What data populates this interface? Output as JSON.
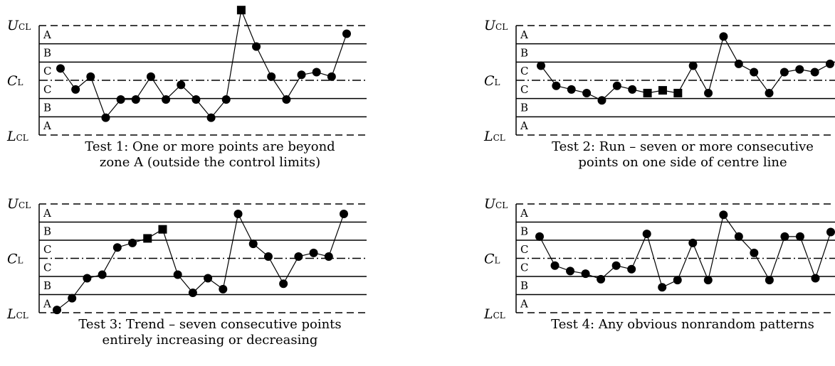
{
  "labels": {
    "ucl_main": "U",
    "ucl_sub": "CL",
    "cl_main": "C",
    "cl_sub": "L",
    "lcl_main": "L",
    "lcl_sub": "CL"
  },
  "zone_labels": [
    "A",
    "B",
    "C",
    "C",
    "B",
    "A"
  ],
  "colors": {
    "ink": "#000000"
  },
  "chart_data": [
    {
      "type": "line",
      "caption": [
        "Test 1: One or more points are beyond",
        "zone A (outside the control limits)"
      ],
      "y_scale": "zone units from centre line (3 = UCL, -3 = LCL)",
      "values": [
        0.65,
        -0.5,
        0.2,
        -2.05,
        -1.05,
        -1.05,
        0.2,
        -1.05,
        -0.25,
        -1.05,
        -2.05,
        -1.05,
        3.85,
        1.85,
        0.2,
        -1.05,
        0.3,
        0.45,
        0.2,
        2.55
      ],
      "highlighted": [
        12
      ]
    },
    {
      "type": "line",
      "caption": [
        "Test 2: Run – seven or more consecutive",
        "points on one side of centre line"
      ],
      "y_scale": "zone units from centre line (3 = UCL, -3 = LCL)",
      "values": [
        0.8,
        -0.3,
        -0.5,
        -0.7,
        -1.1,
        -0.3,
        -0.5,
        -0.7,
        -0.55,
        -0.7,
        0.8,
        -0.7,
        2.4,
        0.9,
        0.45,
        -0.7,
        0.45,
        0.6,
        0.45,
        0.9
      ],
      "highlighted": [
        7,
        8,
        9
      ]
    },
    {
      "type": "line",
      "caption": [
        "Test 3: Trend – seven consecutive points",
        "entirely increasing or decreasing"
      ],
      "y_scale": "zone units from centre line (3 = UCL, -3 = LCL)",
      "values": [
        -2.85,
        -2.2,
        -1.1,
        -0.9,
        0.6,
        0.85,
        1.1,
        1.6,
        -0.9,
        -1.9,
        -1.1,
        -1.7,
        2.45,
        0.8,
        0.1,
        -1.4,
        0.1,
        0.3,
        0.1,
        2.45
      ],
      "highlighted": [
        6,
        7
      ]
    },
    {
      "type": "line",
      "caption": [
        "Test 4: Any obvious nonrandom patterns"
      ],
      "y_scale": "zone units from centre line (3 = UCL, -3 = LCL)",
      "values": [
        1.2,
        -0.4,
        -0.7,
        -0.85,
        -1.15,
        -0.4,
        -0.6,
        1.35,
        -1.6,
        -1.2,
        0.85,
        -1.2,
        2.4,
        1.2,
        0.3,
        -1.2,
        1.2,
        1.2,
        -1.1,
        1.45
      ],
      "highlighted": []
    }
  ]
}
